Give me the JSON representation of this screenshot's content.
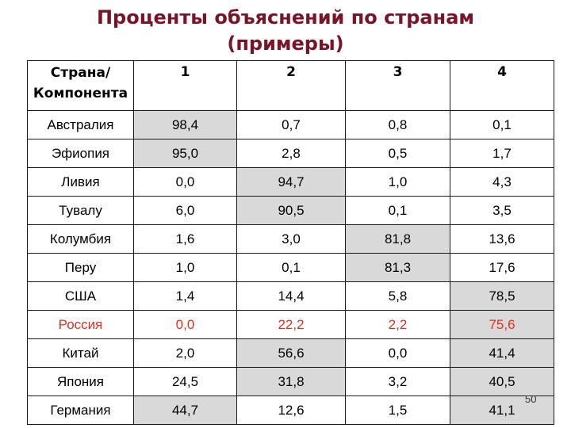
{
  "title": {
    "line1": "Проценты объяснений по странам",
    "line2": "(примеры)"
  },
  "table": {
    "header": {
      "label_line1": "Страна/",
      "label_line2": "Компонента",
      "columns": [
        "1",
        "2",
        "3",
        "4"
      ]
    },
    "rows": [
      {
        "country": "Австралия",
        "values": [
          "98,4",
          "0,7",
          "0,8",
          "0,1"
        ],
        "highlight": 0
      },
      {
        "country": "Эфиопия",
        "values": [
          "95,0",
          "2,8",
          "0,5",
          "1,7"
        ],
        "highlight": 0
      },
      {
        "country": "Ливия",
        "values": [
          "0,0",
          "94,7",
          "1,0",
          "4,3"
        ],
        "highlight": 1
      },
      {
        "country": "Тувалу",
        "values": [
          "6,0",
          "90,5",
          "0,1",
          "3,5"
        ],
        "highlight": 1
      },
      {
        "country": "Колумбия",
        "values": [
          "1,6",
          "3,0",
          "81,8",
          "13,6"
        ],
        "highlight": 2
      },
      {
        "country": "Перу",
        "values": [
          "1,0",
          "0,1",
          "81,3",
          "17,6"
        ],
        "highlight": 2
      },
      {
        "country": "США",
        "values": [
          "1,4",
          "14,4",
          "5,8",
          "78,5"
        ],
        "highlight": 3
      },
      {
        "country": "Россия",
        "values": [
          "0,0",
          "22,2",
          "2,2",
          "75,6"
        ],
        "highlight": 3,
        "text_color": "#e0301e"
      },
      {
        "country": "Китай",
        "values": [
          "2,0",
          "56,6",
          "0,0",
          "41,4"
        ],
        "highlight": [
          1,
          3
        ]
      },
      {
        "country": "Япония",
        "values": [
          "24,5",
          "31,8",
          "3,2",
          "40,5"
        ],
        "highlight": [
          1,
          3
        ]
      },
      {
        "country": "Германия",
        "values": [
          "44,7",
          "12,6",
          "1,5",
          "41,1"
        ],
        "highlight": [
          0,
          3
        ]
      }
    ],
    "highlight_color": "#d9d9d9"
  },
  "page_number": "50",
  "colors": {
    "title": "#7a1426",
    "accent_red": "#e0301e"
  }
}
